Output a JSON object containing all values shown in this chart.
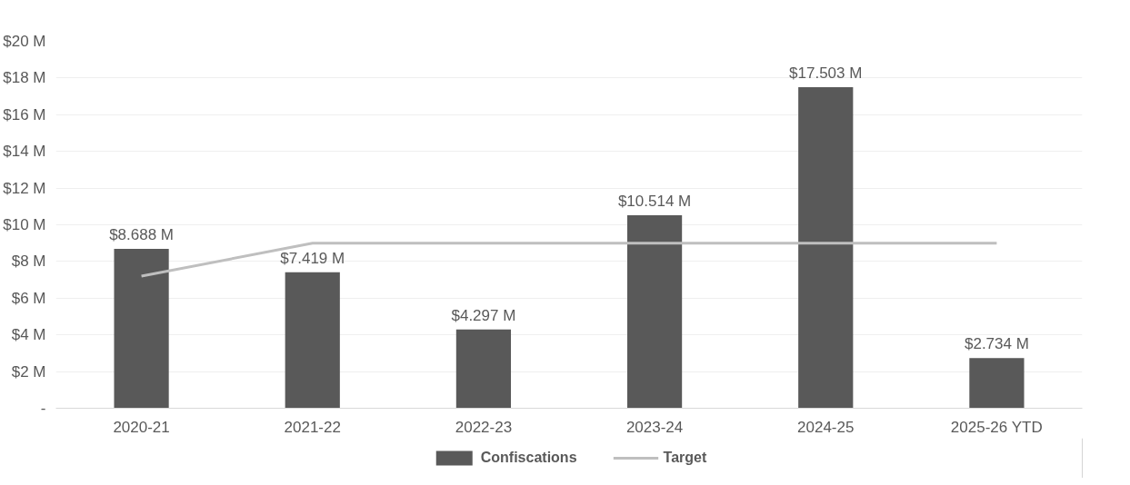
{
  "chart_data": {
    "type": "bar",
    "categories": [
      "2020-21",
      "2021-22",
      "2022-23",
      "2023-24",
      "2024-25",
      "2025-26 YTD"
    ],
    "series": [
      {
        "name": "Confiscations",
        "color": "#595959",
        "values": [
          8.688,
          7.419,
          4.297,
          10.514,
          17.503,
          2.734
        ],
        "value_labels": [
          "$8.688 M",
          "$7.419 M",
          "$4.297 M",
          "$10.514 M",
          "$17.503 M",
          "$2.734 M"
        ]
      },
      {
        "name": "Target",
        "type": "line",
        "color": "#bfbfbf",
        "values": [
          7.2,
          9,
          9,
          9,
          9,
          9
        ]
      }
    ],
    "ylim": [
      0,
      20
    ],
    "yticks": [
      {
        "value": 0,
        "label": "-"
      },
      {
        "value": 2,
        "label": "$2 M"
      },
      {
        "value": 4,
        "label": "$4 M"
      },
      {
        "value": 6,
        "label": "$6 M"
      },
      {
        "value": 8,
        "label": "$8 M"
      },
      {
        "value": 10,
        "label": "$10 M"
      },
      {
        "value": 12,
        "label": "$12 M"
      },
      {
        "value": 14,
        "label": "$14 M"
      },
      {
        "value": 16,
        "label": "$16 M"
      },
      {
        "value": 18,
        "label": "$18 M"
      },
      {
        "value": 20,
        "label": "$20 M"
      }
    ],
    "grid": "y",
    "legend": "bottom"
  }
}
